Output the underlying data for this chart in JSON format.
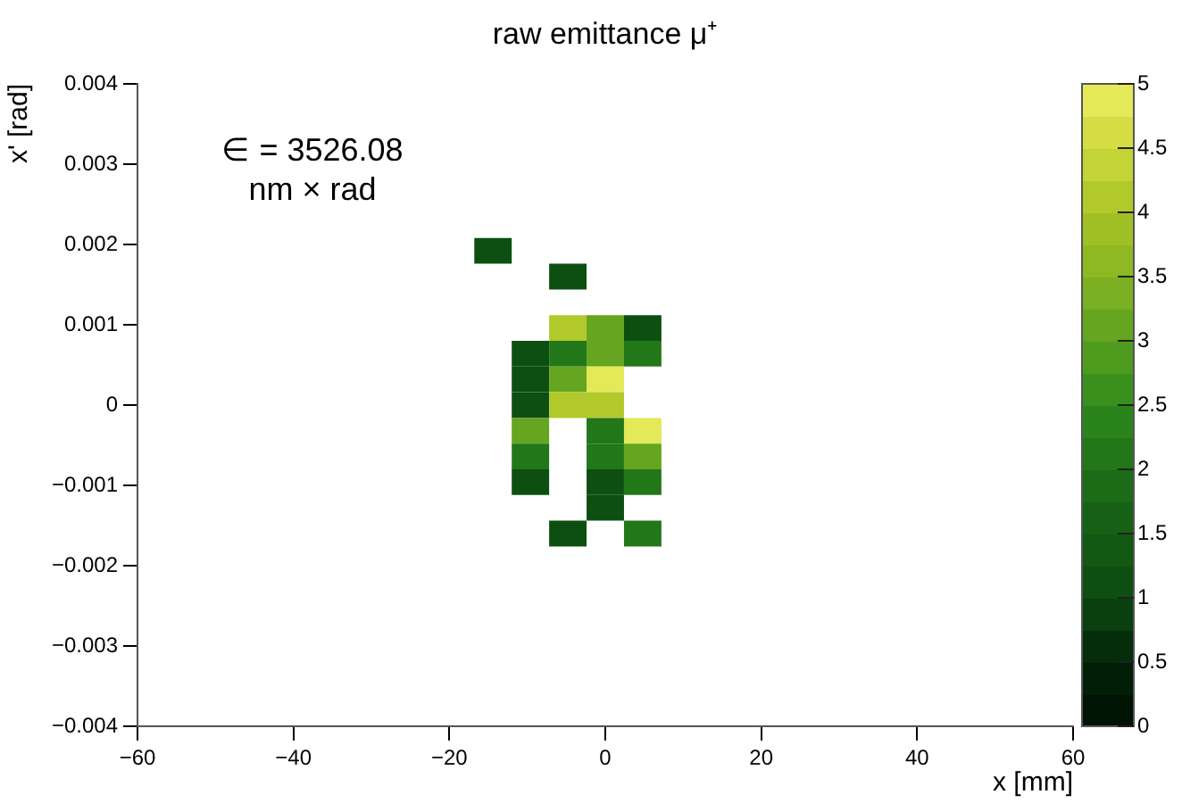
{
  "chart_data": {
    "type": "heatmap",
    "title": "raw emittance μ⁺",
    "xlabel": "x [mm]",
    "ylabel": "x' [rad]",
    "annotations": [
      "∈ = 3526.08",
      "nm × rad"
    ],
    "x": [
      -14.4,
      -9.6,
      -4.8,
      0,
      4.8
    ],
    "y": [
      0.00192,
      0.0016,
      0.00096,
      0.00064,
      0.00032,
      0,
      -0.00032,
      -0.00064,
      -0.00096,
      -0.00128,
      -0.0016
    ],
    "cells": [
      [
        1,
        null,
        null,
        null,
        null
      ],
      [
        null,
        null,
        1,
        null,
        null
      ],
      [
        null,
        null,
        4,
        3,
        1
      ],
      [
        null,
        1,
        2,
        3,
        2
      ],
      [
        null,
        1,
        3,
        5,
        null
      ],
      [
        null,
        1,
        4,
        4,
        null
      ],
      [
        null,
        3,
        null,
        2,
        5
      ],
      [
        null,
        2,
        null,
        2,
        3
      ],
      [
        null,
        1,
        null,
        1,
        2
      ],
      [
        null,
        null,
        null,
        1,
        null
      ],
      [
        null,
        null,
        1,
        null,
        2
      ]
    ],
    "xlim": [
      -60,
      60
    ],
    "xticks": [
      {
        "value": -60,
        "label": "−60"
      },
      {
        "value": -40,
        "label": "−40"
      },
      {
        "value": -20,
        "label": "−20"
      },
      0,
      20,
      40,
      60
    ],
    "ylim": [
      -0.004,
      0.004
    ],
    "yticks": [
      {
        "value": -0.004,
        "label": "−0.004"
      },
      {
        "value": -0.003,
        "label": "−0.003"
      },
      {
        "value": -0.002,
        "label": "−0.002"
      },
      {
        "value": -0.001,
        "label": "−0.001"
      },
      0,
      0.001,
      0.002,
      0.003,
      0.004
    ],
    "clim": [
      0,
      5
    ],
    "cticks": [
      0,
      0.5,
      1,
      1.5,
      2,
      2.5,
      3,
      3.5,
      4,
      4.5,
      5
    ],
    "grid": false,
    "legend": false
  }
}
